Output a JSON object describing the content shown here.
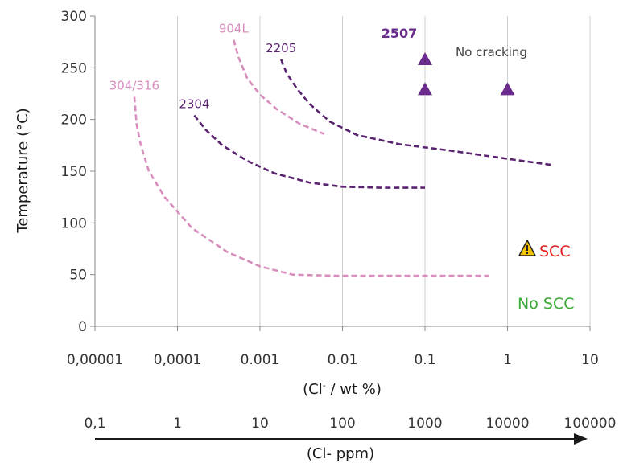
{
  "chart_data": {
    "type": "line",
    "ylabel": "Temperature (°C)",
    "xlabel": {
      "pre": "(Cl",
      "sup": "-",
      "post": " / wt %)"
    },
    "ylim": [
      0,
      300
    ],
    "y_ticks": [
      0,
      50,
      100,
      150,
      200,
      250,
      300
    ],
    "xlim": [
      1e-05,
      10
    ],
    "x_scale": "log",
    "x_ticks": [
      {
        "v": 1e-05,
        "label": "0,00001"
      },
      {
        "v": 0.0001,
        "label": "0,0001"
      },
      {
        "v": 0.001,
        "label": "0.001"
      },
      {
        "v": 0.01,
        "label": "0.01"
      },
      {
        "v": 0.1,
        "label": "0.1"
      },
      {
        "v": 1,
        "label": "1"
      },
      {
        "v": 10,
        "label": "10"
      }
    ],
    "grid": "vertical at decades",
    "secondary_axis": {
      "label": "(Cl- ppm)",
      "ticks": [
        "0,1",
        "1",
        "10",
        "100",
        "1000",
        "10000",
        "100000"
      ],
      "arrow": "right"
    },
    "series": [
      {
        "name": "304/316",
        "color": "#d88ebd",
        "style": "dashed",
        "points": [
          [
            3e-05,
            222
          ],
          [
            3.2e-05,
            195
          ],
          [
            3.6e-05,
            175
          ],
          [
            4.5e-05,
            150
          ],
          [
            7e-05,
            125
          ],
          [
            0.00015,
            95
          ],
          [
            0.0004,
            72
          ],
          [
            0.001,
            58
          ],
          [
            0.0025,
            50
          ],
          [
            0.008,
            49
          ],
          [
            0.05,
            49
          ],
          [
            0.6,
            49
          ]
        ]
      },
      {
        "name": "904L",
        "color": "#d88ebd",
        "style": "dashed",
        "points": [
          [
            0.00048,
            277
          ],
          [
            0.00055,
            260
          ],
          [
            0.0007,
            240
          ],
          [
            0.001,
            224
          ],
          [
            0.0016,
            210
          ],
          [
            0.003,
            196
          ],
          [
            0.006,
            186
          ]
        ]
      },
      {
        "name": "2304",
        "color": "#5a2370",
        "style": "dashed",
        "points": [
          [
            0.00016,
            204
          ],
          [
            0.00022,
            190
          ],
          [
            0.00035,
            175
          ],
          [
            0.0007,
            160
          ],
          [
            0.0015,
            148
          ],
          [
            0.004,
            139
          ],
          [
            0.01,
            135
          ],
          [
            0.03,
            134
          ],
          [
            0.1,
            134
          ]
        ]
      },
      {
        "name": "2205",
        "color": "#5a2370",
        "style": "dashed",
        "points": [
          [
            0.0018,
            258
          ],
          [
            0.0021,
            245
          ],
          [
            0.0028,
            230
          ],
          [
            0.004,
            215
          ],
          [
            0.007,
            198
          ],
          [
            0.015,
            185
          ],
          [
            0.05,
            176
          ],
          [
            0.2,
            170
          ],
          [
            1,
            162
          ],
          [
            3.5,
            156
          ]
        ]
      }
    ],
    "markers": {
      "name": "2507",
      "shape": "triangle",
      "color": "#6a2c8c",
      "points": [
        [
          0.1,
          258
        ],
        [
          0.1,
          229
        ],
        [
          1,
          229
        ]
      ]
    },
    "annotations": {
      "no_cracking": "No cracking",
      "scc": "SCC",
      "scc_color": "#e02020",
      "no_scc": "No SCC",
      "no_scc_color": "#3aaa35"
    }
  }
}
